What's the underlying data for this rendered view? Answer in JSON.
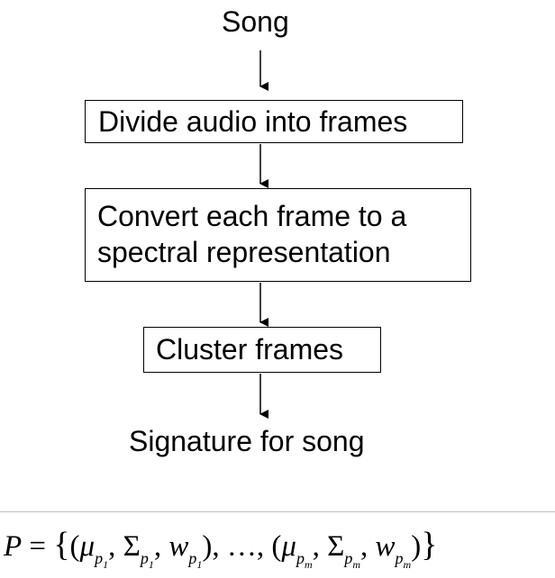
{
  "diagram": {
    "input_label": "Song",
    "steps": [
      {
        "lines": [
          "Divide audio into frames"
        ]
      },
      {
        "lines": [
          "Convert each frame to a",
          "spectral representation"
        ]
      },
      {
        "lines": [
          "Cluster frames"
        ]
      }
    ],
    "output_label": "Signature for song"
  },
  "formula": {
    "lhs": "P",
    "equals": "=",
    "set_open": "{",
    "set_close": "}",
    "tuple_open": "(",
    "tuple_close": ")",
    "ellipsis": "…",
    "comma": ",",
    "mu": "μ",
    "sigma": "Σ",
    "w": "w",
    "p": "p",
    "sub_first": "1",
    "sub_last": "m"
  }
}
